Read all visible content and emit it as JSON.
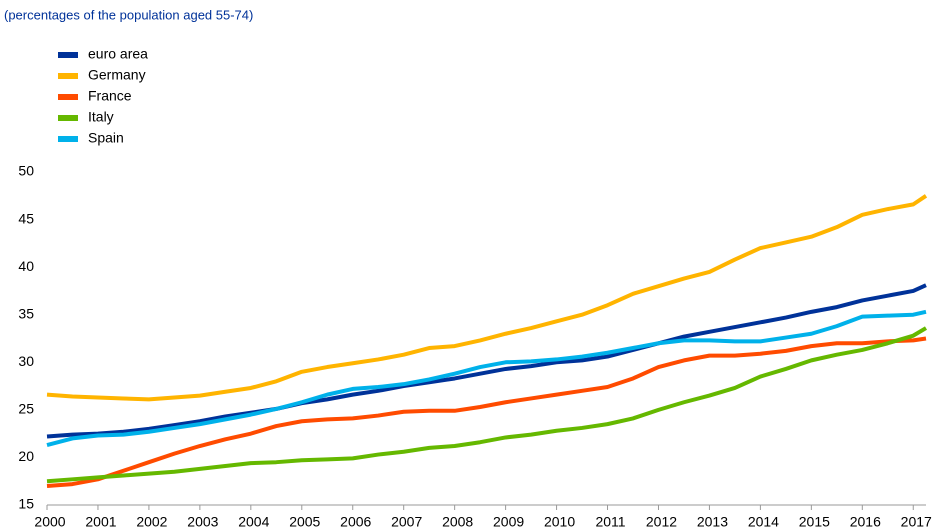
{
  "chart_data": {
    "type": "line",
    "subtitle": "(percentages of the population aged 55-74)",
    "x": [
      2000,
      2000.5,
      2001,
      2001.5,
      2002,
      2002.5,
      2003,
      2003.5,
      2004,
      2004.5,
      2005,
      2005.5,
      2006,
      2006.5,
      2007,
      2007.5,
      2008,
      2008.5,
      2009,
      2009.5,
      2010,
      2010.5,
      2011,
      2011.5,
      2012,
      2012.5,
      2013,
      2013.5,
      2014,
      2014.5,
      2015,
      2015.5,
      2016,
      2016.5,
      2017,
      2017.25
    ],
    "series": [
      {
        "name": "euro area",
        "color": "#003299",
        "values": [
          22.2,
          22.4,
          22.5,
          22.7,
          23.0,
          23.4,
          23.8,
          24.3,
          24.7,
          25.1,
          25.7,
          26.1,
          26.6,
          27.0,
          27.5,
          27.9,
          28.3,
          28.8,
          29.3,
          29.6,
          30.0,
          30.2,
          30.6,
          31.3,
          32.0,
          32.7,
          33.2,
          33.7,
          34.2,
          34.7,
          35.3,
          35.8,
          36.5,
          37.0,
          37.5,
          38.1
        ]
      },
      {
        "name": "Germany",
        "color": "#ffb400",
        "values": [
          26.6,
          26.4,
          26.3,
          26.2,
          26.1,
          26.3,
          26.5,
          26.9,
          27.3,
          28.0,
          29.0,
          29.5,
          29.9,
          30.3,
          30.8,
          31.5,
          31.7,
          32.3,
          33.0,
          33.6,
          34.3,
          35.0,
          36.0,
          37.2,
          38.0,
          38.8,
          39.5,
          40.8,
          42.0,
          42.6,
          43.2,
          44.2,
          45.5,
          46.1,
          46.6,
          47.5
        ]
      },
      {
        "name": "France",
        "color": "#ff4b00",
        "values": [
          17.0,
          17.2,
          17.7,
          18.6,
          19.5,
          20.4,
          21.2,
          21.9,
          22.5,
          23.3,
          23.8,
          24.0,
          24.1,
          24.4,
          24.8,
          24.9,
          24.9,
          25.3,
          25.8,
          26.2,
          26.6,
          27.0,
          27.4,
          28.3,
          29.5,
          30.2,
          30.7,
          30.7,
          30.9,
          31.2,
          31.7,
          32.0,
          32.0,
          32.2,
          32.3,
          32.5
        ]
      },
      {
        "name": "Italy",
        "color": "#65b800",
        "values": [
          17.5,
          17.7,
          17.9,
          18.1,
          18.3,
          18.5,
          18.8,
          19.1,
          19.4,
          19.5,
          19.7,
          19.8,
          19.9,
          20.3,
          20.6,
          21.0,
          21.2,
          21.6,
          22.1,
          22.4,
          22.8,
          23.1,
          23.5,
          24.1,
          25.0,
          25.8,
          26.5,
          27.3,
          28.5,
          29.3,
          30.2,
          30.8,
          31.3,
          32.0,
          32.8,
          33.6
        ]
      },
      {
        "name": "Spain",
        "color": "#00b1ea",
        "values": [
          21.3,
          22.0,
          22.3,
          22.4,
          22.7,
          23.1,
          23.5,
          24.0,
          24.5,
          25.1,
          25.8,
          26.6,
          27.2,
          27.4,
          27.7,
          28.2,
          28.8,
          29.5,
          30.0,
          30.1,
          30.3,
          30.6,
          31.0,
          31.5,
          32.0,
          32.3,
          32.3,
          32.2,
          32.2,
          32.6,
          33.0,
          33.8,
          34.8,
          34.9,
          35.0,
          35.3
        ]
      }
    ],
    "xlim": [
      2000,
      2017.25
    ],
    "xticks": [
      2000,
      2001,
      2002,
      2003,
      2004,
      2005,
      2006,
      2007,
      2008,
      2009,
      2010,
      2011,
      2012,
      2013,
      2014,
      2015,
      2016,
      2017
    ],
    "ylim": [
      15,
      50
    ],
    "yticks": [
      15,
      20,
      25,
      30,
      35,
      40,
      45,
      50
    ],
    "grid": false,
    "legend": "top-left"
  }
}
